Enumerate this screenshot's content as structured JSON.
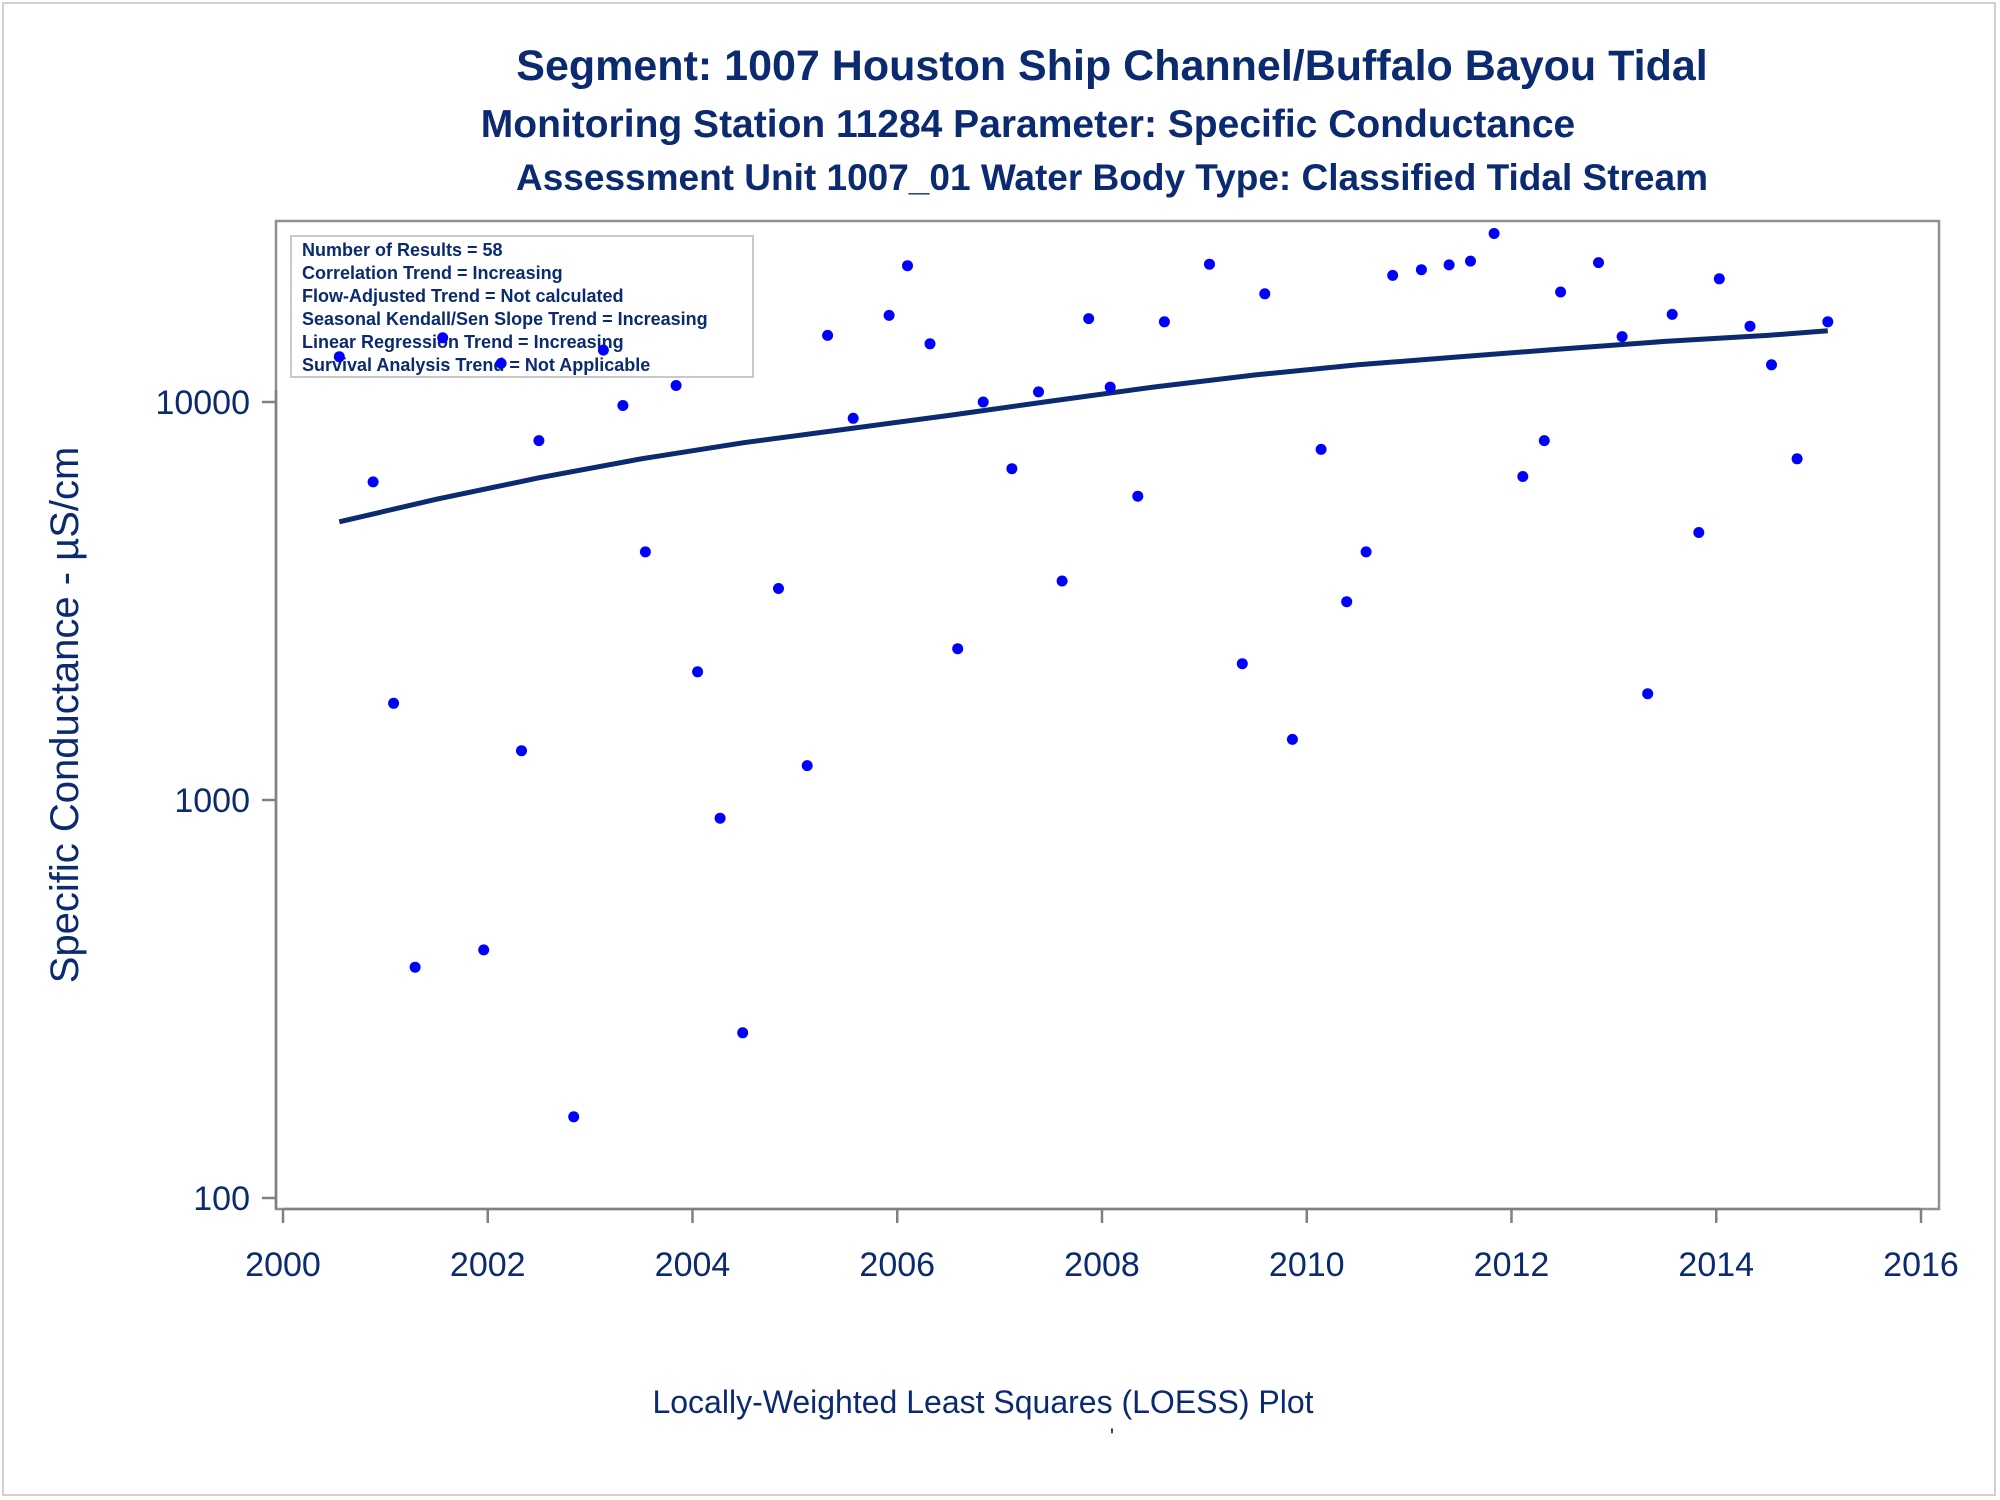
{
  "titles": {
    "line1": "Segment: 1007  Houston Ship Channel/Buffalo Bayou Tidal",
    "line2": "Monitoring Station 11284 Parameter: Specific Conductance",
    "line3": "Assessment Unit 1007_01   Water Body Type: Classified Tidal Stream"
  },
  "stats": [
    "Number of Results = 58",
    "Correlation Trend = Increasing",
    "Flow-Adjusted Trend = Not calculated",
    "Seasonal Kendall/Sen Slope Trend = Increasing",
    "Linear Regression Trend = Increasing",
    "Survival Analysis Trend = Not Applicable"
  ],
  "footer": {
    "plot_label": "Locally-Weighted Least Squares (LOESS) Plot",
    "mark": "'"
  },
  "colors": {
    "text": "#0b2a6f",
    "points": "#0000ff",
    "trend": "#0b2a6f",
    "axis": "#808080"
  },
  "chart_data": {
    "type": "scatter",
    "ylabel": "Specific Conductance -  µS/cm",
    "xlabel": "Locally-Weighted Least Squares (LOESS) Plot",
    "y_scale": "log",
    "xlim": [
      2000,
      2016
    ],
    "ylim": [
      100,
      30000
    ],
    "x_ticks": [
      2000,
      2002,
      2004,
      2006,
      2008,
      2010,
      2012,
      2014,
      2016
    ],
    "y_ticks": [
      100,
      1000,
      10000
    ],
    "grid": false,
    "points": [
      [
        2000.55,
        13000
      ],
      [
        2000.88,
        6300
      ],
      [
        2001.08,
        1750
      ],
      [
        2001.29,
        380
      ],
      [
        2001.56,
        14500
      ],
      [
        2001.96,
        420
      ],
      [
        2002.13,
        12500
      ],
      [
        2002.33,
        1330
      ],
      [
        2002.5,
        8000
      ],
      [
        2002.84,
        160
      ],
      [
        2003.13,
        13500
      ],
      [
        2003.32,
        9800
      ],
      [
        2003.54,
        4200
      ],
      [
        2003.84,
        11000
      ],
      [
        2004.05,
        2100
      ],
      [
        2004.27,
        900
      ],
      [
        2004.49,
        260
      ],
      [
        2004.84,
        3400
      ],
      [
        2005.12,
        1220
      ],
      [
        2005.32,
        14700
      ],
      [
        2005.57,
        9100
      ],
      [
        2005.92,
        16500
      ],
      [
        2006.1,
        22000
      ],
      [
        2006.32,
        14000
      ],
      [
        2006.59,
        2400
      ],
      [
        2006.84,
        10000
      ],
      [
        2007.12,
        6800
      ],
      [
        2007.38,
        10600
      ],
      [
        2007.61,
        3550
      ],
      [
        2007.87,
        16200
      ],
      [
        2008.08,
        10900
      ],
      [
        2008.35,
        5800
      ],
      [
        2008.61,
        15900
      ],
      [
        2009.05,
        22200
      ],
      [
        2009.37,
        2200
      ],
      [
        2009.59,
        18700
      ],
      [
        2009.86,
        1420
      ],
      [
        2010.14,
        7600
      ],
      [
        2010.39,
        3150
      ],
      [
        2010.58,
        4200
      ],
      [
        2010.84,
        20800
      ],
      [
        2011.12,
        21500
      ],
      [
        2011.39,
        22100
      ],
      [
        2011.6,
        22600
      ],
      [
        2011.83,
        26500
      ],
      [
        2012.11,
        6500
      ],
      [
        2012.32,
        8000
      ],
      [
        2012.48,
        18900
      ],
      [
        2012.85,
        22400
      ],
      [
        2013.08,
        14600
      ],
      [
        2013.33,
        1850
      ],
      [
        2013.57,
        16600
      ],
      [
        2013.83,
        4700
      ],
      [
        2014.03,
        20400
      ],
      [
        2014.33,
        15500
      ],
      [
        2014.54,
        12400
      ],
      [
        2014.79,
        7200
      ],
      [
        2015.09,
        15900
      ]
    ],
    "loess": [
      [
        2000.55,
        5000
      ],
      [
        2001.5,
        5700
      ],
      [
        2002.5,
        6450
      ],
      [
        2003.5,
        7200
      ],
      [
        2004.5,
        7900
      ],
      [
        2005.5,
        8550
      ],
      [
        2006.5,
        9250
      ],
      [
        2007.5,
        10050
      ],
      [
        2008.5,
        10900
      ],
      [
        2009.5,
        11700
      ],
      [
        2010.5,
        12400
      ],
      [
        2011.5,
        13000
      ],
      [
        2012.5,
        13600
      ],
      [
        2013.5,
        14200
      ],
      [
        2014.5,
        14700
      ],
      [
        2015.09,
        15100
      ]
    ]
  }
}
